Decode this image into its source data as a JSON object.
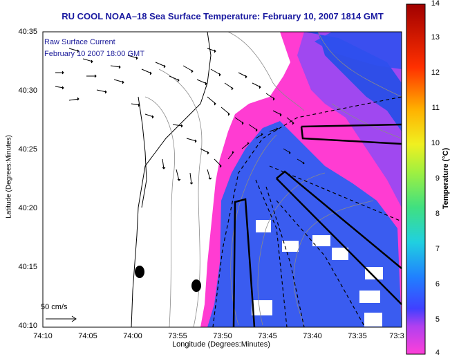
{
  "title": "RU COOL  NOAA–18  Sea Surface Temperature:  February 10, 2007 1814 GMT",
  "overlay": {
    "line1": "Raw Surface Current",
    "line2": "February 10 2007 18:00 GMT"
  },
  "axes": {
    "xlabel": "Longitude (Degrees:Minutes)",
    "ylabel": "Latitude (Degrees:Minutes)",
    "xticks": [
      "74:10",
      "74:05",
      "74:00",
      "73:55",
      "73:50",
      "73:45",
      "73:40",
      "73:35",
      "73:3"
    ],
    "yticks": [
      "40:35",
      "40:30",
      "40:25",
      "40:20",
      "40:15",
      "40:10"
    ]
  },
  "scale_label": "50 cm/s",
  "colorbar": {
    "title": "Temperature (°C)",
    "ticks": [
      "14",
      "13",
      "12",
      "11",
      "10",
      "9",
      "8",
      "7",
      "6",
      "5",
      "4"
    ],
    "min": 4,
    "max": 14
  },
  "colors": {
    "title": "#1a1aa0",
    "warm_water": "#3a5cf0",
    "cold_water": "#ff3cd2",
    "land": "#ffffff"
  }
}
